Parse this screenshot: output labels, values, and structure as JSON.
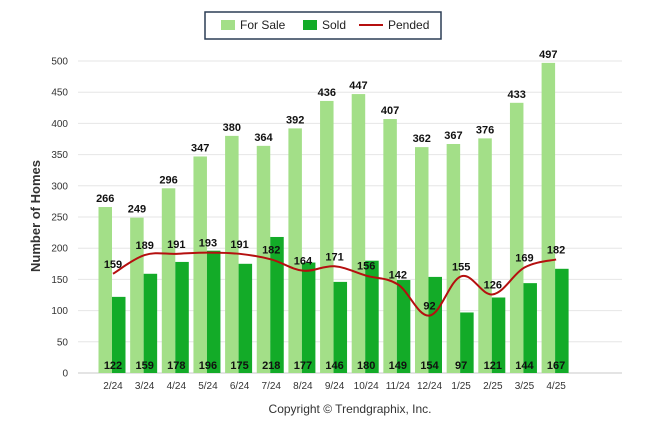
{
  "chart_data": {
    "type": "bar",
    "categories": [
      "2/24",
      "3/24",
      "4/24",
      "5/24",
      "6/24",
      "7/24",
      "8/24",
      "9/24",
      "10/24",
      "11/24",
      "12/24",
      "1/25",
      "2/25",
      "3/25",
      "4/25"
    ],
    "series": [
      {
        "name": "For Sale",
        "type": "bar",
        "color": "#a3df88",
        "values": [
          266,
          249,
          296,
          347,
          380,
          364,
          392,
          436,
          447,
          407,
          362,
          367,
          376,
          433,
          497
        ]
      },
      {
        "name": "Sold",
        "type": "bar",
        "color": "#13ab28",
        "values": [
          122,
          159,
          178,
          196,
          175,
          218,
          177,
          146,
          180,
          149,
          154,
          97,
          121,
          144,
          167
        ]
      },
      {
        "name": "Pended",
        "type": "line",
        "color": "#b50f0f",
        "values": [
          159,
          189,
          191,
          193,
          191,
          182,
          164,
          171,
          156,
          142,
          92,
          155,
          126,
          169,
          182
        ]
      }
    ],
    "ylabel": "Number of Homes",
    "ylim": [
      0,
      500
    ],
    "yticks": [
      0,
      50,
      100,
      150,
      200,
      250,
      300,
      350,
      400,
      450,
      500
    ],
    "grid": true,
    "legend": "top-center"
  },
  "copyright": "Copyright © Trendgraphix, Inc."
}
